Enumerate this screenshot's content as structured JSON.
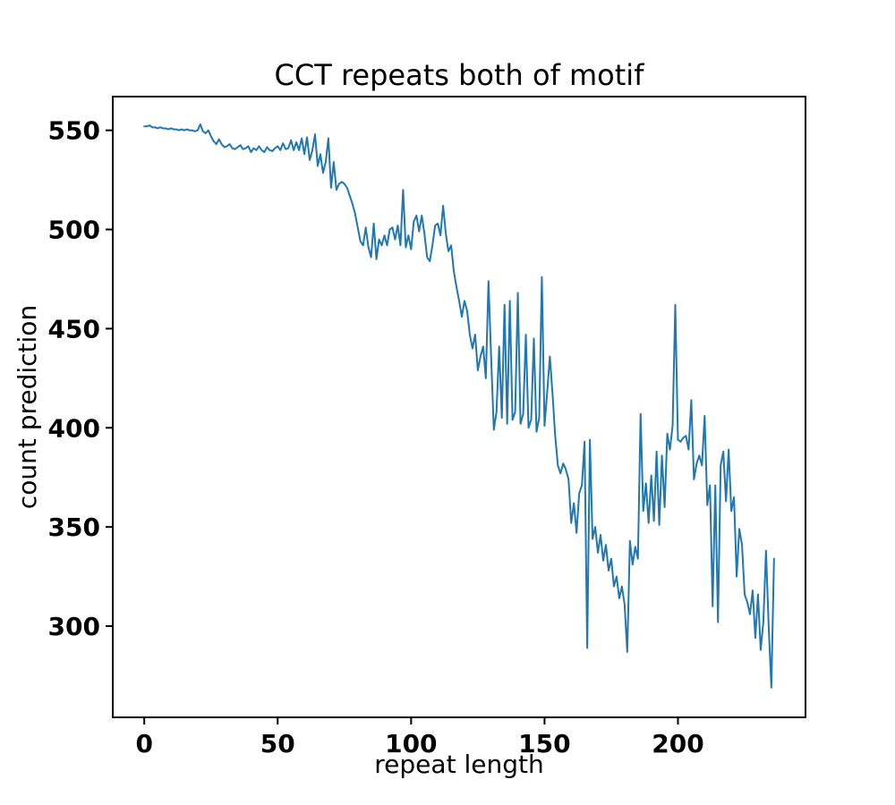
{
  "figure": {
    "background": "#ffffff"
  },
  "chart_data": {
    "type": "line",
    "title": "CCT repeats both of motif",
    "xlabel": "repeat length",
    "ylabel": "count prediction",
    "x_start": 0,
    "x_step": 1,
    "values": [
      552,
      552,
      552.5,
      551.5,
      551.5,
      551,
      551.5,
      551,
      551,
      550.5,
      551,
      550.5,
      550.5,
      550,
      550.5,
      550,
      550.5,
      550,
      550,
      549.5,
      550,
      553,
      549.5,
      548.5,
      550,
      547,
      544.5,
      543,
      545.5,
      543,
      541.5,
      542,
      543,
      541,
      540.5,
      541.5,
      542.5,
      540.5,
      541,
      542,
      539,
      541,
      540,
      542,
      540,
      539,
      541.5,
      540,
      539.5,
      541,
      542,
      540,
      543.5,
      540.5,
      541,
      545,
      540,
      544,
      540,
      546,
      538,
      546.5,
      535,
      540,
      548,
      532,
      538,
      528.5,
      534,
      546,
      521,
      534,
      520,
      523,
      524,
      523,
      521,
      517,
      513,
      508,
      501,
      494,
      492,
      501,
      491,
      486,
      503,
      485,
      495,
      492,
      497,
      492,
      500,
      501,
      495,
      502,
      492,
      520,
      491,
      497,
      490,
      504,
      507,
      499,
      507,
      498,
      486,
      484,
      492,
      502,
      503,
      497,
      512,
      498,
      489,
      492,
      479,
      471,
      464,
      456,
      464,
      459,
      447,
      440,
      447,
      429,
      436,
      441,
      425,
      474,
      435,
      399,
      408,
      441,
      405,
      462,
      402,
      464,
      404,
      408,
      468,
      402,
      407,
      447,
      400,
      404,
      445,
      398,
      405,
      476,
      401,
      418,
      436,
      417,
      396,
      381,
      377,
      382,
      379,
      374,
      352,
      362,
      347,
      367,
      371,
      393,
      289,
      394,
      344,
      350,
      337,
      346,
      333,
      341,
      328,
      334,
      320,
      325,
      314,
      320,
      311,
      287,
      343,
      331,
      340,
      334,
      407,
      358,
      372,
      352,
      376,
      353,
      388,
      351,
      386,
      360,
      397,
      389,
      401,
      462,
      394,
      393,
      395,
      396,
      389,
      414,
      374,
      382,
      386,
      381,
      406,
      361,
      371,
      310,
      371,
      302,
      381,
      388,
      363,
      389,
      358,
      365,
      325,
      349,
      341,
      316,
      312,
      306,
      318,
      294,
      316,
      288,
      302,
      338,
      300,
      269,
      334
    ],
    "xticks": [
      0,
      50,
      100,
      150,
      200
    ],
    "yticks": [
      300,
      350,
      400,
      450,
      500,
      550
    ],
    "xlim": [
      -11.8,
      247.8
    ],
    "ylim": [
      254,
      567
    ],
    "line_color": "#1f77b4",
    "axis_color": "#000000",
    "grid": false
  }
}
